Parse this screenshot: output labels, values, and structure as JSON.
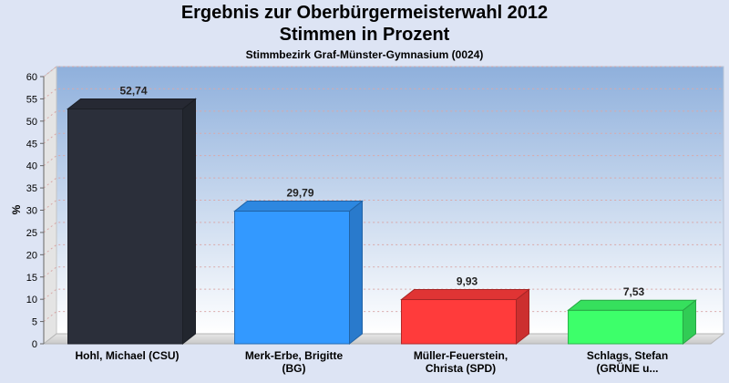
{
  "header": {
    "title_line1": "Ergebnis zur Oberbürgermeisterwahl 2012",
    "title_line2": "Stimmen in Prozent",
    "subtitle": "Stimmbezirk Graf-Münster-Gymnasium (0024)"
  },
  "chart_data": {
    "type": "bar",
    "title": "Ergebnis zur Oberbürgermeisterwahl 2012 / Stimmen in Prozent",
    "subtitle": "Stimmbezirk Graf-Münster-Gymnasium (0024)",
    "ylabel": "%",
    "xlabel": "",
    "ylim": [
      0,
      60
    ],
    "yticks": [
      0,
      5,
      10,
      15,
      20,
      25,
      30,
      35,
      40,
      45,
      50,
      55,
      60
    ],
    "grid": true,
    "categories": [
      [
        "Hohl, Michael (CSU)"
      ],
      [
        "Merk-Erbe, Brigitte",
        "(BG)"
      ],
      [
        "Müller-Feuerstein,",
        "Christa (SPD)"
      ],
      [
        "Schlags, Stefan",
        "(GRÜNE u..."
      ]
    ],
    "values": [
      52.74,
      29.79,
      9.93,
      7.53
    ],
    "value_labels": [
      "52,74",
      "29,79",
      "9,93",
      "7,53"
    ],
    "colors": [
      "#2b2f3a",
      "#3399ff",
      "#ff3b3b",
      "#3dff6a"
    ]
  }
}
